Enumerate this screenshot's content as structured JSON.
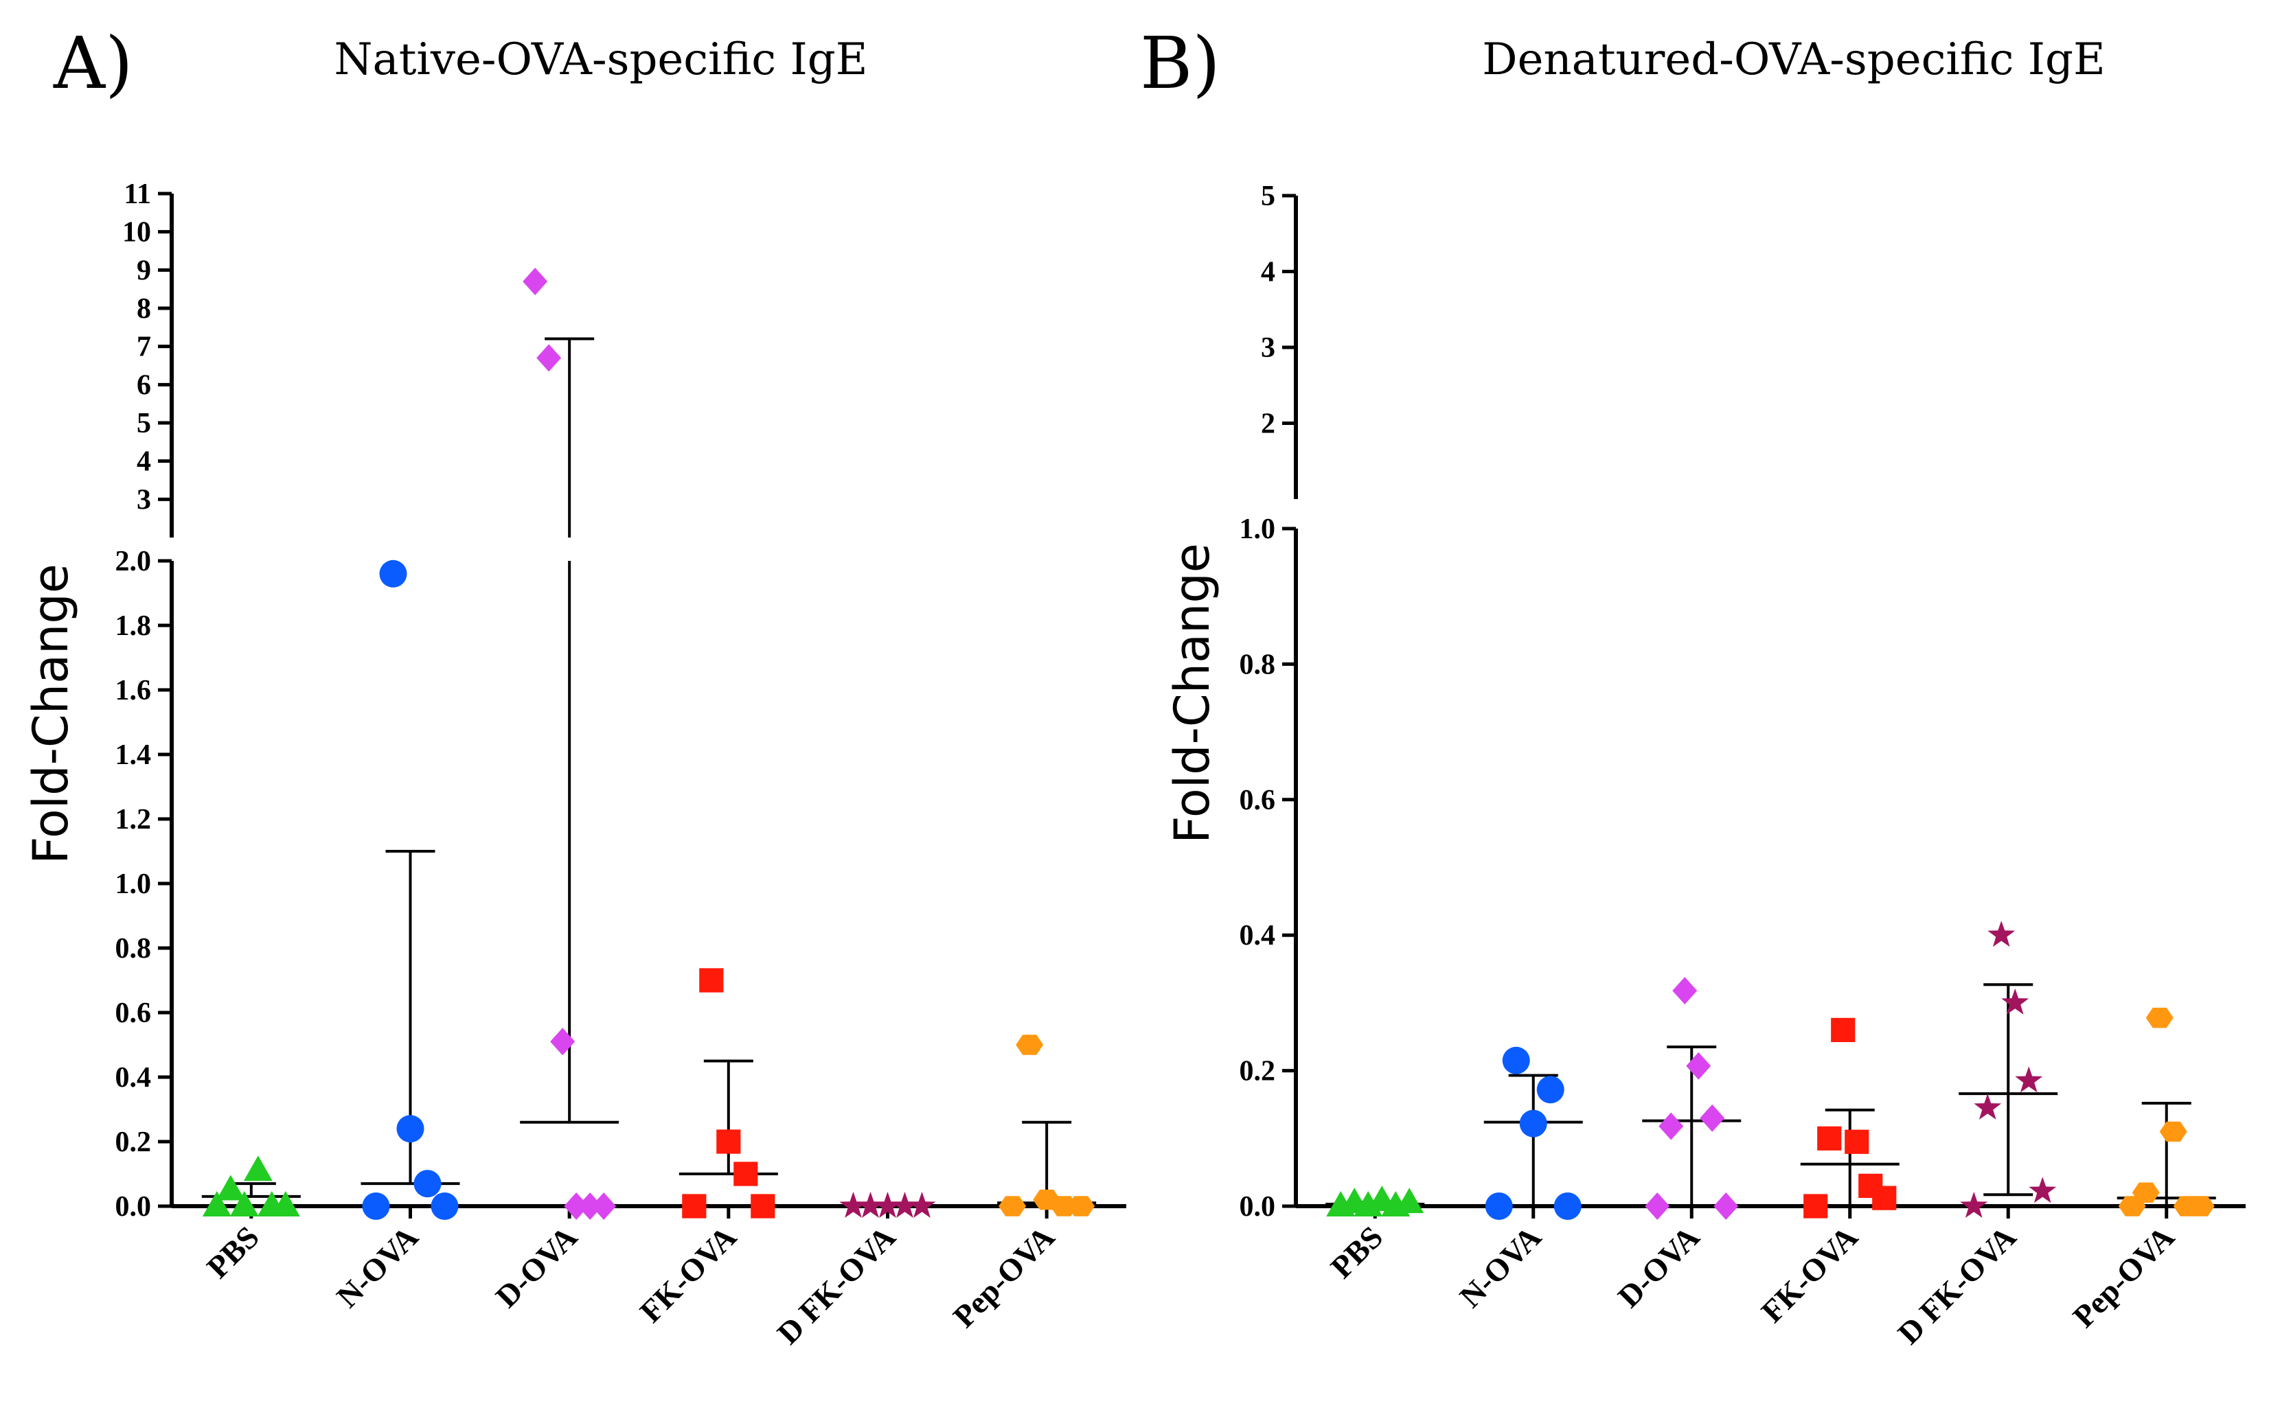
{
  "colors": {
    "PBS": "#22cc22",
    "N-OVA": "#0a5cff",
    "D-OVA": "#d946ef",
    "FK-OVA": "#ff1a0a",
    "D FK-OVA": "#a3145e",
    "Pep-OVA": "#ff9810"
  },
  "markers": {
    "PBS": "triangle",
    "N-OVA": "circle",
    "D-OVA": "diamond",
    "FK-OVA": "square",
    "D FK-OVA": "star",
    "Pep-OVA": "hexagon"
  },
  "chart_data": [
    {
      "panel": "A)",
      "type": "scatter",
      "title": "Native-OVA-specific IgE",
      "ylabel": "Fold-Change",
      "categories": [
        "PBS",
        "N-OVA",
        "D-OVA",
        "FK-OVA",
        "D FK-OVA",
        "Pep-OVA"
      ],
      "y_axis_lower": {
        "ylim": [
          0,
          2.0
        ],
        "ticks": [
          "0.0",
          "0.2",
          "0.4",
          "0.6",
          "0.8",
          "1.0",
          "1.2",
          "1.4",
          "1.6",
          "1.8",
          "2.0"
        ]
      },
      "y_axis_upper": {
        "ylim": [
          2,
          11
        ],
        "ticks": [
          "3",
          "4",
          "5",
          "6",
          "7",
          "8",
          "9",
          "10",
          "11"
        ]
      },
      "series": [
        {
          "name": "PBS",
          "values": [
            0,
            0.05,
            0,
            0.11,
            0,
            0
          ],
          "mean": 0.03,
          "sd_upper": 0.07
        },
        {
          "name": "N-OVA",
          "values": [
            0,
            1.96,
            0.24,
            0.07,
            0
          ],
          "mean": 0.07,
          "sd_upper": 1.1
        },
        {
          "name": "D-OVA",
          "values": [
            8.7,
            6.7,
            0.51,
            0,
            0,
            0
          ],
          "mean": 0.26,
          "sd_upper": 7.2
        },
        {
          "name": "FK-OVA",
          "values": [
            0,
            0.7,
            0.2,
            0.1,
            0
          ],
          "mean": 0.1,
          "sd_upper": 0.45
        },
        {
          "name": "D FK-OVA",
          "values": [
            0,
            0,
            0,
            0,
            0
          ],
          "mean": 0.0,
          "sd_upper": 0.0
        },
        {
          "name": "Pep-OVA",
          "values": [
            0,
            0.5,
            0.02,
            0,
            0
          ],
          "mean": 0.01,
          "sd_upper": 0.26
        }
      ]
    },
    {
      "panel": "B)",
      "type": "scatter",
      "title": "Denatured-OVA-specific IgE",
      "ylabel": "Fold-Change",
      "categories": [
        "PBS",
        "N-OVA",
        "D-OVA",
        "FK-OVA",
        "D FK-OVA",
        "Pep-OVA"
      ],
      "y_axis_lower": {
        "ylim": [
          0,
          1.0
        ],
        "ticks": [
          "0.0",
          "0.2",
          "0.4",
          "0.6",
          "0.8",
          "1.0"
        ]
      },
      "y_axis_upper": {
        "ylim": [
          1,
          5
        ],
        "ticks": [
          "2",
          "3",
          "4",
          "5"
        ]
      },
      "series": [
        {
          "name": "PBS",
          "values": [
            0,
            0.005,
            0,
            0.008,
            0,
            0.005
          ],
          "mean": 0.003,
          "sd_lower": 0.0,
          "sd_upper": 0.006
        },
        {
          "name": "N-OVA",
          "values": [
            0,
            0.215,
            0.122,
            0.172,
            0
          ],
          "mean": 0.124,
          "sd_lower": 0.0,
          "sd_upper": 0.193
        },
        {
          "name": "D-OVA",
          "values": [
            0,
            0.118,
            0.318,
            0.207,
            0.13,
            0
          ],
          "mean": 0.126,
          "sd_lower": 0.0,
          "sd_upper": 0.235
        },
        {
          "name": "FK-OVA",
          "values": [
            0,
            0.1,
            0.26,
            0.095,
            0.03,
            0.012
          ],
          "mean": 0.062,
          "sd_lower": 0.0,
          "sd_upper": 0.142
        },
        {
          "name": "D FK-OVA",
          "values": [
            0,
            0.145,
            0.4,
            0.3,
            0.185,
            0.022
          ],
          "mean": 0.166,
          "sd_lower": 0.017,
          "sd_upper": 0.327
        },
        {
          "name": "Pep-OVA",
          "values": [
            0,
            0.02,
            0.278,
            0.11,
            0,
            0
          ],
          "mean": 0.012,
          "sd_lower": 0.0,
          "sd_upper": 0.152
        }
      ]
    }
  ]
}
